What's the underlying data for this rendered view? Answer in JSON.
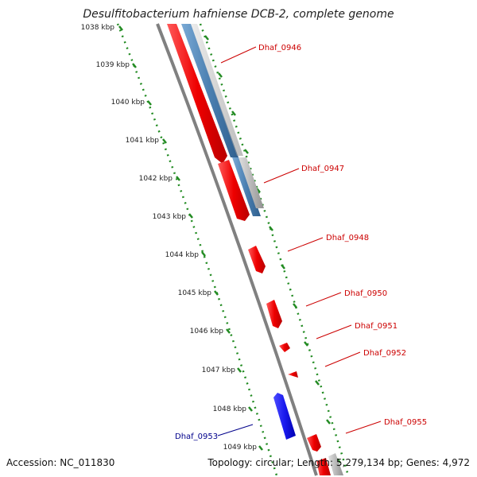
{
  "title": "Desulfitobacterium hafniense DCB-2, complete genome",
  "kbp_labels": [
    "1038 kbp",
    "1039 kbp",
    "1040 kbp",
    "1041 kbp",
    "1042 kbp",
    "1043 kbp",
    "1044 kbp",
    "1045 kbp",
    "1046 kbp",
    "1047 kbp",
    "1048 kbp",
    "1049 kbp"
  ],
  "genes": {
    "g0946": "Dhaf_0946",
    "g0947": "Dhaf_0947",
    "g0948": "Dhaf_0948",
    "g0950": "Dhaf_0950",
    "g0951": "Dhaf_0951",
    "g0952": "Dhaf_0952",
    "g0953": "Dhaf_0953",
    "g0955": "Dhaf_0955"
  },
  "footer": {
    "accession": "Accession: NC_011830",
    "info": "Topology: circular; Length: 5,279,134 bp; Genes: 4,972"
  },
  "colors": {
    "forward_gene": "#ee0000",
    "reverse_gene": "#1a1aee",
    "feature_blue": "#4a7fb0",
    "feature_gray": "#b8b8b8",
    "backbone": "#808080",
    "tick": "#228b22",
    "forward_label": "#cc0000",
    "reverse_label": "#00008b"
  }
}
